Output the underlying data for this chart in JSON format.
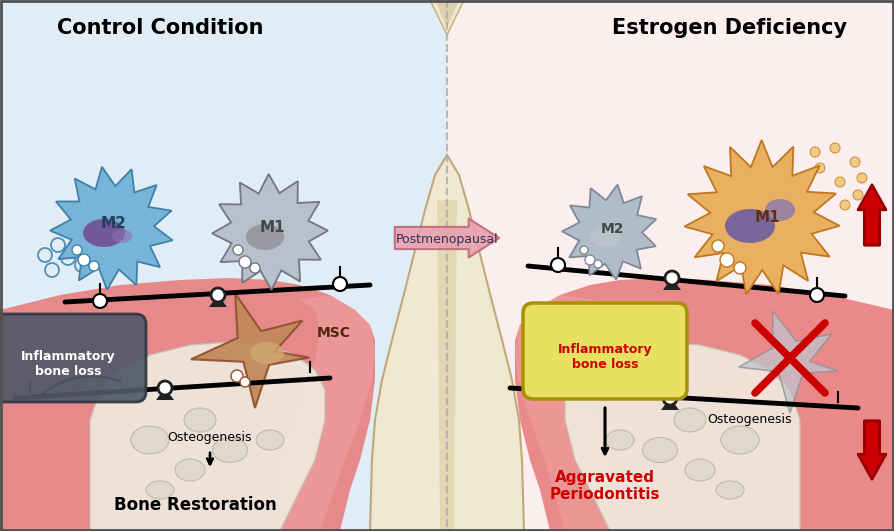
{
  "title_left": "Control Condition",
  "title_right": "Estrogen Deficiency",
  "arrow_label": "Postmenopausal",
  "label_m2_left": "M2",
  "label_m1_left": "M1",
  "label_m2_right": "M2",
  "label_m1_right": "M1",
  "label_msc": "MSC",
  "label_osteo_left": "Osteogenesis",
  "label_osteo_right": "Osteogenesis",
  "label_bone_restore": "Bone Restoration",
  "label_aggravated": "Aggravated\nPeriodontitis",
  "label_inflam_left": "Inflammatory\nbone loss",
  "label_inflam_right": "Inflammatory\nbone loss",
  "bg_left_color": "#c8dff0",
  "bg_right_color": "#f8e0e0",
  "tooth_color": "#f0e8d0",
  "tooth_root_color": "#e0cca8",
  "gum_color": "#e87878",
  "gum_light_color": "#f0a0a0",
  "bone_color": "#e8e0d0",
  "m2_left_cell_color": "#78b4d8",
  "m2_left_edge_color": "#4080a8",
  "m2_left_nucleus_color": "#704890",
  "m1_left_cell_color": "#b8c0cc",
  "m1_left_edge_color": "#707880",
  "m1_left_nucleus_color": "#909098",
  "m2_right_cell_color": "#b0bcc8",
  "m2_right_edge_color": "#808898",
  "m1_right_cell_color": "#e8b060",
  "m1_right_edge_color": "#c07820",
  "m1_right_nucleus_color": "#6858a8",
  "msc_color": "#c08858",
  "msc_edge_color": "#905030",
  "inflam_left_fill": "#505868",
  "inflam_left_edge": "#303840",
  "inflam_right_fill": "#e8e060",
  "inflam_right_edge": "#a89000",
  "red_color": "#cc0000",
  "dark_red": "#990000",
  "pivot_color": "#202020",
  "dashed_line_color": "#aaaaaa",
  "title_fontsize": 15,
  "anno_fontsize": 10,
  "small_fontsize": 9,
  "bone_restore_fontsize": 12,
  "aggravated_fontsize": 11
}
